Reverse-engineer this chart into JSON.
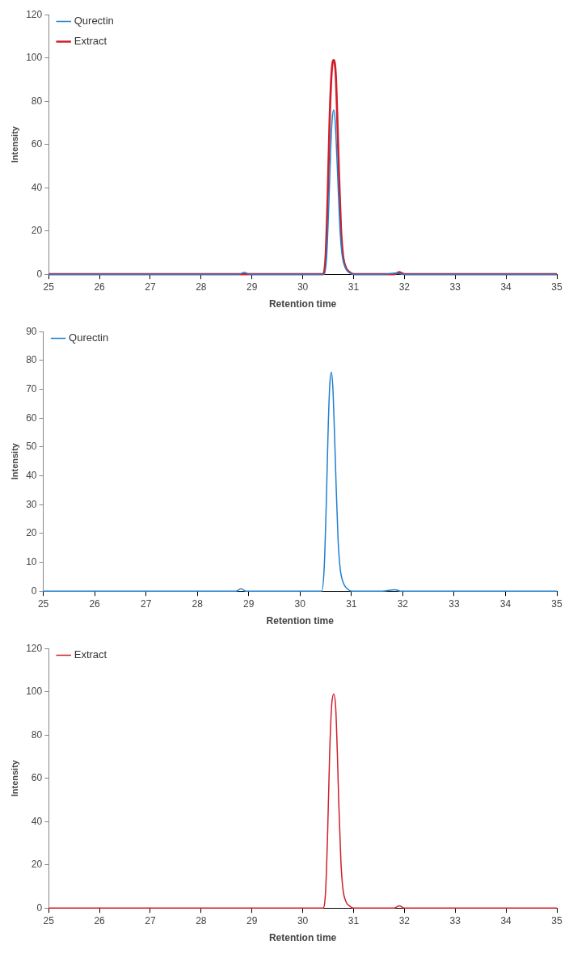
{
  "chart_data": [
    {
      "type": "line",
      "xlabel": "Retention time",
      "ylabel": "Intensity",
      "xlim": [
        25,
        35
      ],
      "xticks": [
        25,
        26,
        27,
        28,
        29,
        30,
        31,
        32,
        33,
        34,
        35
      ],
      "ylim": [
        0,
        120
      ],
      "yticks": [
        0,
        20,
        40,
        60,
        80,
        100,
        120
      ],
      "grid": false,
      "legend": "top left",
      "marker": "none",
      "line_style": "solid",
      "series": [
        {
          "name": "Qurectin",
          "color": "#1f7fd0",
          "x": [
            25,
            28.75,
            28.85,
            28.95,
            30.42,
            30.47,
            30.51,
            30.55,
            30.58,
            30.61,
            30.64,
            30.67,
            30.7,
            30.74,
            30.78,
            30.84,
            30.92,
            31.0,
            31.6,
            31.85,
            31.95,
            35
          ],
          "values": [
            0,
            0,
            0.8,
            0,
            0,
            8,
            30,
            58,
            72,
            76,
            70,
            55,
            38,
            18,
            8,
            3,
            0.8,
            0,
            0,
            0.5,
            0,
            0
          ]
        },
        {
          "name": "Extract",
          "color": "#d01f2a",
          "x": [
            25,
            30.4,
            30.45,
            30.49,
            30.53,
            30.57,
            30.61,
            30.65,
            30.68,
            30.71,
            30.75,
            30.79,
            30.85,
            30.93,
            31.0,
            31.8,
            31.9,
            32.0,
            35
          ],
          "values": [
            0,
            0,
            8,
            35,
            72,
            94,
            99,
            92,
            72,
            48,
            22,
            9,
            3,
            0.8,
            0,
            0,
            1,
            0,
            0
          ]
        }
      ]
    },
    {
      "type": "line",
      "xlabel": "Retention time",
      "ylabel": "Intensity",
      "xlim": [
        25,
        35
      ],
      "xticks": [
        25,
        26,
        27,
        28,
        29,
        30,
        31,
        32,
        33,
        34,
        35
      ],
      "ylim": [
        0,
        90
      ],
      "yticks": [
        0,
        10,
        20,
        30,
        40,
        50,
        60,
        70,
        80,
        90
      ],
      "grid": false,
      "legend": "top left",
      "marker": "none",
      "line_style": "solid",
      "series": [
        {
          "name": "Qurectin",
          "color": "#1f7fd0",
          "x": [
            25,
            28.75,
            28.85,
            28.95,
            30.42,
            30.47,
            30.51,
            30.55,
            30.58,
            30.61,
            30.64,
            30.67,
            30.7,
            30.74,
            30.78,
            30.84,
            30.92,
            31.0,
            31.6,
            31.85,
            31.95,
            35
          ],
          "values": [
            0,
            0,
            0.8,
            0,
            0,
            8,
            30,
            58,
            72,
            76,
            70,
            55,
            38,
            18,
            8,
            3,
            0.8,
            0,
            0,
            0.5,
            0,
            0
          ]
        }
      ]
    },
    {
      "type": "line",
      "xlabel": "Retention time",
      "ylabel": "Intensity",
      "xlim": [
        25,
        35
      ],
      "xticks": [
        25,
        26,
        27,
        28,
        29,
        30,
        31,
        32,
        33,
        34,
        35
      ],
      "ylim": [
        0,
        120
      ],
      "yticks": [
        0,
        20,
        40,
        60,
        80,
        100,
        120
      ],
      "grid": false,
      "legend": "top left",
      "marker": "none",
      "line_style": "solid",
      "series": [
        {
          "name": "Extract",
          "color": "#d01f2a",
          "x": [
            25,
            30.4,
            30.45,
            30.49,
            30.53,
            30.57,
            30.61,
            30.65,
            30.68,
            30.71,
            30.75,
            30.79,
            30.85,
            30.93,
            31.0,
            31.8,
            31.9,
            32.0,
            35
          ],
          "values": [
            0,
            0,
            8,
            35,
            72,
            94,
            99,
            92,
            72,
            48,
            22,
            9,
            3,
            0.8,
            0,
            0,
            1,
            0,
            0
          ]
        }
      ]
    }
  ]
}
